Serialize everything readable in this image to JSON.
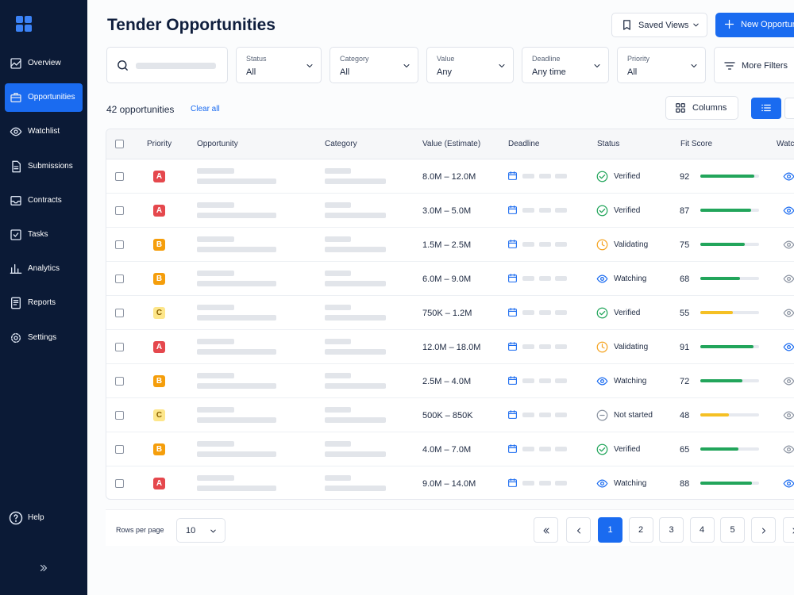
{
  "sidebar": {
    "nav": [
      "Overview",
      "Opportunities",
      "Watchlist",
      "Submissions",
      "Contracts",
      "Tasks",
      "Analytics",
      "Reports",
      "Settings"
    ],
    "help": "Help"
  },
  "header": {
    "title": "Tender Opportunities",
    "saved_views": "Saved Views",
    "new_button": "New Opportunity"
  },
  "filters": [
    {
      "label": "Status",
      "value": "All"
    },
    {
      "label": "Category",
      "value": "All"
    },
    {
      "label": "Value",
      "value": "Any"
    },
    {
      "label": "Deadline",
      "value": "Any time"
    },
    {
      "label": "Priority",
      "value": "All"
    }
  ],
  "more_filters": "More Filters",
  "summary": {
    "count": "42 opportunities",
    "clear": "Clear all",
    "columns": "Columns"
  },
  "table": {
    "headers": [
      "Priority",
      "Opportunity",
      "Category",
      "Value (Estimate)",
      "Deadline",
      "Status",
      "Fit Score",
      "Watchlist"
    ],
    "fit_score_lim": [
      0,
      100
    ],
    "priority_colors": {
      "A": {
        "bg": "#e5484d",
        "fg": "#ffffff"
      },
      "B": {
        "bg": "#f59e0b",
        "fg": "#ffffff"
      },
      "C": {
        "bg": "#fde68a",
        "fg": "#8a6100"
      }
    },
    "status_icons": {
      "Verified": {
        "icon": "check",
        "color": "#22a55b"
      },
      "Validating": {
        "icon": "clock",
        "color": "#f5a524"
      },
      "Watching": {
        "icon": "eye",
        "color": "#1a6bf0"
      },
      "Not started": {
        "icon": "minus",
        "color": "#8b93a1"
      }
    },
    "rows": [
      {
        "priority": "A",
        "value": "8.0M – 12.0M",
        "status": "Verified",
        "fit": 92,
        "watched": true
      },
      {
        "priority": "A",
        "value": "3.0M – 5.0M",
        "status": "Verified",
        "fit": 87,
        "watched": true
      },
      {
        "priority": "B",
        "value": "1.5M – 2.5M",
        "status": "Validating",
        "fit": 75,
        "watched": false
      },
      {
        "priority": "B",
        "value": "6.0M – 9.0M",
        "status": "Watching",
        "fit": 68,
        "watched": false
      },
      {
        "priority": "C",
        "value": "750K – 1.2M",
        "status": "Verified",
        "fit": 55,
        "watched": false
      },
      {
        "priority": "A",
        "value": "12.0M – 18.0M",
        "status": "Validating",
        "fit": 91,
        "watched": true
      },
      {
        "priority": "B",
        "value": "2.5M – 4.0M",
        "status": "Watching",
        "fit": 72,
        "watched": false
      },
      {
        "priority": "C",
        "value": "500K – 850K",
        "status": "Not started",
        "fit": 48,
        "watched": false
      },
      {
        "priority": "B",
        "value": "4.0M – 7.0M",
        "status": "Verified",
        "fit": 65,
        "watched": false
      },
      {
        "priority": "A",
        "value": "9.0M – 14.0M",
        "status": "Watching",
        "fit": 88,
        "watched": true
      }
    ]
  },
  "pagination": {
    "rows_per_page_label": "Rows per page",
    "rows_per_page": 10,
    "pages": [
      1,
      2,
      3,
      4,
      5
    ]
  }
}
